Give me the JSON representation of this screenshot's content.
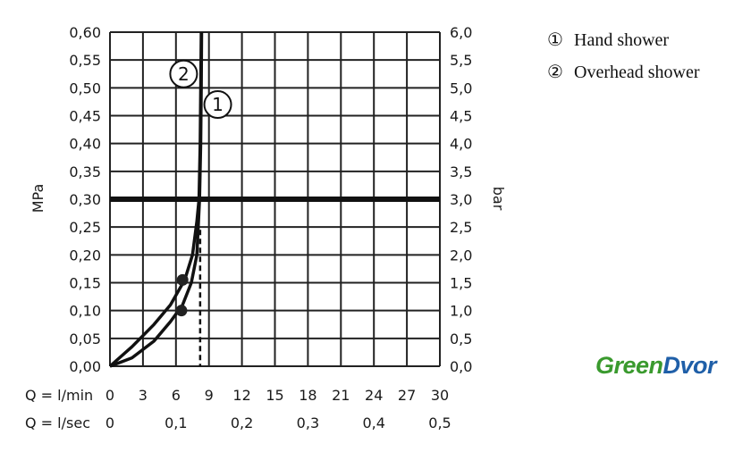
{
  "chart_data": {
    "type": "line",
    "y_left": {
      "label": "MPa",
      "range": [
        0,
        0.6
      ],
      "ticks": [
        "0,00",
        "0,05",
        "0,10",
        "0,15",
        "0,20",
        "0,25",
        "0,30",
        "0,35",
        "0,40",
        "0,45",
        "0,50",
        "0,55",
        "0,60"
      ]
    },
    "y_right": {
      "label": "bar",
      "range": [
        0,
        6
      ],
      "ticks": [
        "0,0",
        "0,5",
        "1,0",
        "1,5",
        "2,0",
        "2,5",
        "3,0",
        "3,5",
        "4,0",
        "4,5",
        "5,0",
        "5,5",
        "6,0"
      ]
    },
    "x_primary": {
      "label": "Q = l/min",
      "range": [
        0,
        30
      ],
      "ticks": [
        "0",
        "3",
        "6",
        "9",
        "12",
        "15",
        "18",
        "21",
        "24",
        "27",
        "30"
      ]
    },
    "x_secondary": {
      "label": "Q = l/sec",
      "ticks": [
        "0",
        "0,1",
        "0,2",
        "0,3",
        "0,4",
        "0,5"
      ]
    },
    "reference_line_mpa": 0.3,
    "dashed_line_lmin": 8.2,
    "series": [
      {
        "name": "Hand shower",
        "marker": "①",
        "points": [
          [
            0,
            0
          ],
          [
            2,
            0.015
          ],
          [
            4,
            0.045
          ],
          [
            5.5,
            0.08
          ],
          [
            6.6,
            0.11
          ],
          [
            7.4,
            0.15
          ],
          [
            7.9,
            0.2
          ],
          [
            8.15,
            0.3
          ],
          [
            8.25,
            0.4
          ],
          [
            8.3,
            0.5
          ],
          [
            8.33,
            0.6
          ]
        ],
        "dot": [
          6.5,
          0.1
        ],
        "label_at": [
          9.8,
          0.47
        ]
      },
      {
        "name": "Overhead shower",
        "marker": "②",
        "points": [
          [
            0,
            0
          ],
          [
            2,
            0.035
          ],
          [
            4,
            0.075
          ],
          [
            5.5,
            0.11
          ],
          [
            6.8,
            0.155
          ],
          [
            7.5,
            0.2
          ],
          [
            7.9,
            0.26
          ],
          [
            8.1,
            0.3
          ],
          [
            8.2,
            0.4
          ],
          [
            8.25,
            0.5
          ],
          [
            8.3,
            0.6
          ]
        ],
        "dot": [
          6.6,
          0.155
        ],
        "label_at": [
          6.7,
          0.525
        ]
      }
    ]
  },
  "legend": [
    {
      "marker": "①",
      "label": "Hand shower"
    },
    {
      "marker": "②",
      "label": "Overhead shower"
    }
  ],
  "brand": {
    "part1": "Green",
    "part2": "Dvor",
    "color1": "#3a9a2e",
    "color2": "#1f5fa8"
  }
}
